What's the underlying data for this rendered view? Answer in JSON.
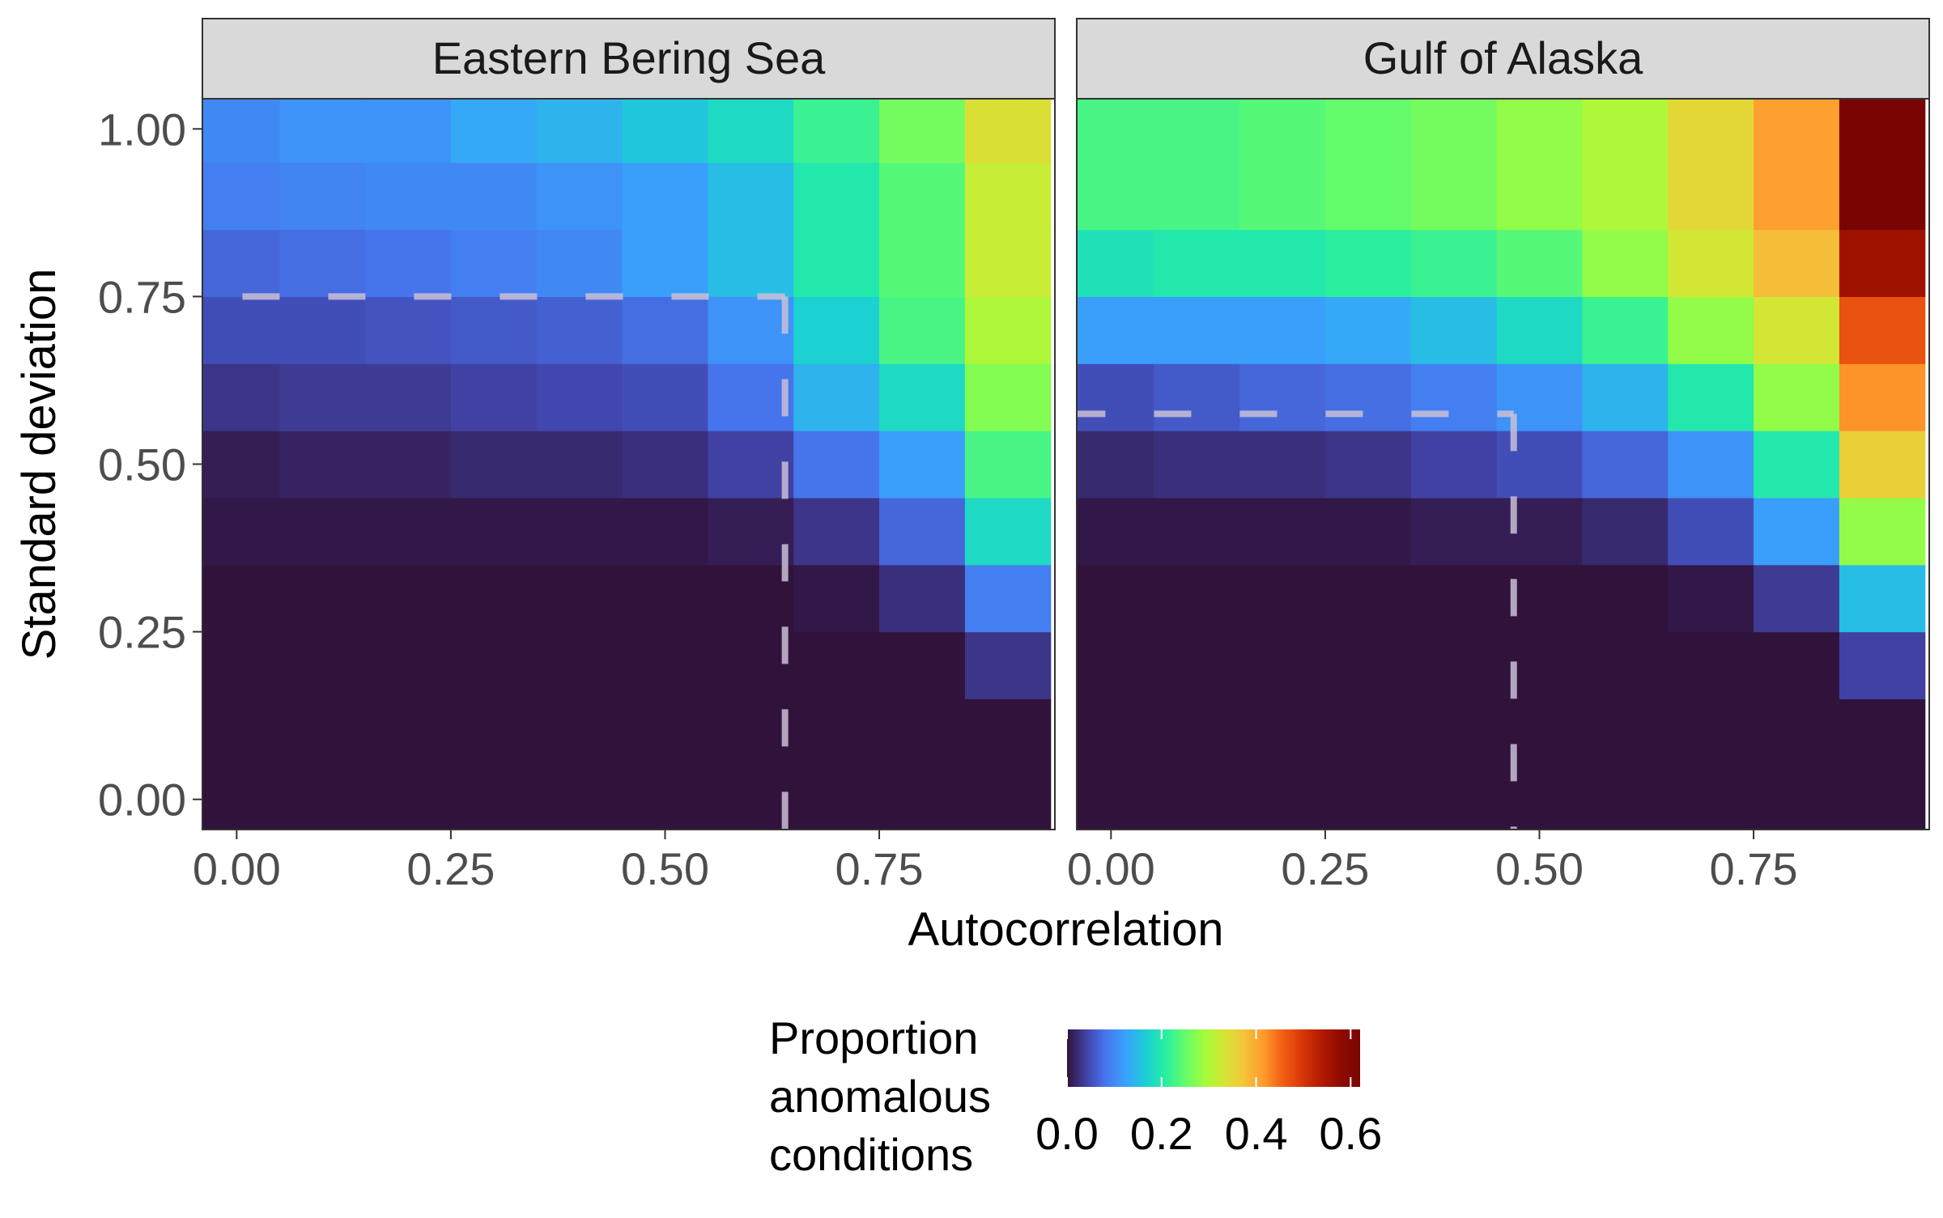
{
  "chart_data": {
    "type": "heatmap",
    "xlabel": "Autocorrelation",
    "ylabel": "Standard deviation",
    "x": [
      0.0,
      0.1,
      0.2,
      0.3,
      0.4,
      0.5,
      0.6,
      0.7,
      0.8,
      0.9
    ],
    "y": [
      0.0,
      0.1,
      0.2,
      0.3,
      0.4,
      0.5,
      0.6,
      0.7,
      0.8,
      0.9,
      1.0
    ],
    "x_ticks": [
      "0.00",
      "0.25",
      "0.50",
      "0.75"
    ],
    "x_tick_values": [
      0.0,
      0.25,
      0.5,
      0.75
    ],
    "y_ticks": [
      "0.00",
      "0.25",
      "0.50",
      "0.75",
      "1.00"
    ],
    "y_tick_values": [
      0.0,
      0.25,
      0.5,
      0.75,
      1.0
    ],
    "xlim": [
      -0.04,
      0.955
    ],
    "ylim": [
      -0.045,
      1.045
    ],
    "grid": false,
    "legend": {
      "title_lines": [
        "Proportion",
        "anomalous",
        "conditions"
      ],
      "ticks": [
        "0.0",
        "0.2",
        "0.4",
        "0.6"
      ],
      "tick_values": [
        0.0,
        0.2,
        0.4,
        0.6
      ],
      "range": [
        0,
        0.62
      ],
      "placement": "bottom"
    },
    "colorscale": [
      [
        0.0,
        "#30123b"
      ],
      [
        0.07,
        "#4145ab"
      ],
      [
        0.13,
        "#4675ed"
      ],
      [
        0.2,
        "#39a2fc"
      ],
      [
        0.27,
        "#1bcfd4"
      ],
      [
        0.33,
        "#24eca6"
      ],
      [
        0.4,
        "#61fc6c"
      ],
      [
        0.47,
        "#a4fc3b"
      ],
      [
        0.53,
        "#d1e834"
      ],
      [
        0.6,
        "#f3c63a"
      ],
      [
        0.67,
        "#fe9b2d"
      ],
      [
        0.73,
        "#f36315"
      ],
      [
        0.8,
        "#d93806"
      ],
      [
        0.87,
        "#b11901"
      ],
      [
        0.93,
        "#900c00"
      ],
      [
        1.0,
        "#7a0403"
      ]
    ],
    "panels": [
      {
        "title": "Eastern Bering Sea",
        "values": [
          [
            0,
            0,
            0,
            0,
            0,
            0,
            0,
            0,
            0,
            0
          ],
          [
            0,
            0,
            0,
            0,
            0,
            0,
            0,
            0,
            0,
            0
          ],
          [
            0,
            0,
            0,
            0,
            0,
            0,
            0,
            0,
            0,
            0.03
          ],
          [
            0,
            0,
            0,
            0,
            0,
            0,
            0,
            0.005,
            0.025,
            0.09
          ],
          [
            0.005,
            0.005,
            0.005,
            0.005,
            0.005,
            0.005,
            0.01,
            0.03,
            0.07,
            0.18
          ],
          [
            0.01,
            0.015,
            0.015,
            0.02,
            0.02,
            0.025,
            0.04,
            0.08,
            0.12,
            0.23
          ],
          [
            0.03,
            0.035,
            0.035,
            0.04,
            0.045,
            0.05,
            0.08,
            0.14,
            0.18,
            0.27
          ],
          [
            0.05,
            0.05,
            0.055,
            0.06,
            0.065,
            0.075,
            0.11,
            0.17,
            0.23,
            0.3
          ],
          [
            0.07,
            0.075,
            0.08,
            0.09,
            0.1,
            0.12,
            0.15,
            0.2,
            0.24,
            0.32
          ],
          [
            0.09,
            0.095,
            0.1,
            0.1,
            0.11,
            0.12,
            0.15,
            0.2,
            0.24,
            0.32
          ],
          [
            0.1,
            0.11,
            0.11,
            0.13,
            0.14,
            0.16,
            0.18,
            0.22,
            0.26,
            0.34
          ]
        ],
        "hline": {
          "y": 0.75,
          "x_end": 0.64
        },
        "vline": {
          "x": 0.64,
          "y_end": 0.75
        }
      },
      {
        "title": "Gulf of Alaska",
        "values": [
          [
            0,
            0,
            0,
            0,
            0,
            0,
            0,
            0,
            0,
            0
          ],
          [
            0,
            0,
            0,
            0,
            0,
            0,
            0,
            0,
            0,
            0
          ],
          [
            0,
            0,
            0,
            0,
            0,
            0,
            0,
            0,
            0,
            0.04
          ],
          [
            0,
            0,
            0,
            0,
            0,
            0,
            0,
            0.005,
            0.035,
            0.15
          ],
          [
            0.005,
            0.005,
            0.005,
            0.005,
            0.01,
            0.01,
            0.02,
            0.05,
            0.12,
            0.28
          ],
          [
            0.02,
            0.025,
            0.025,
            0.03,
            0.04,
            0.05,
            0.07,
            0.11,
            0.2,
            0.36
          ],
          [
            0.05,
            0.06,
            0.07,
            0.075,
            0.09,
            0.11,
            0.14,
            0.2,
            0.28,
            0.42
          ],
          [
            0.12,
            0.12,
            0.12,
            0.13,
            0.15,
            0.18,
            0.22,
            0.28,
            0.33,
            0.47
          ],
          [
            0.19,
            0.2,
            0.2,
            0.21,
            0.22,
            0.24,
            0.28,
            0.33,
            0.38,
            0.56
          ],
          [
            0.23,
            0.23,
            0.24,
            0.25,
            0.26,
            0.28,
            0.3,
            0.35,
            0.41,
            0.62
          ],
          [
            0.23,
            0.23,
            0.24,
            0.25,
            0.26,
            0.28,
            0.3,
            0.35,
            0.41,
            0.62
          ]
        ],
        "hline": {
          "y": 0.575,
          "x_end": 0.47
        },
        "vline": {
          "x": 0.47,
          "y_end": 0.575
        }
      }
    ]
  }
}
